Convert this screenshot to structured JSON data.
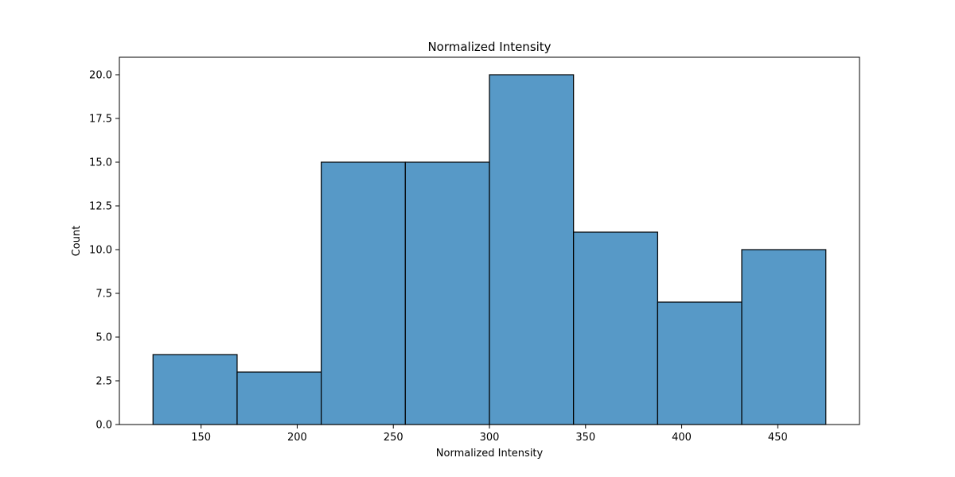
{
  "chart_data": {
    "type": "bar",
    "title": "Normalized Intensity",
    "xlabel": "Normalized Intensity",
    "ylabel": "Count",
    "xlim": [
      107.5,
      492.5
    ],
    "ylim": [
      0,
      21
    ],
    "grid": false,
    "bins": [
      {
        "left": 125.0,
        "right": 168.75,
        "count": 4
      },
      {
        "left": 168.75,
        "right": 212.5,
        "count": 3
      },
      {
        "left": 212.5,
        "right": 256.25,
        "count": 15
      },
      {
        "left": 256.25,
        "right": 300.0,
        "count": 15
      },
      {
        "left": 300.0,
        "right": 343.75,
        "count": 20
      },
      {
        "left": 343.75,
        "right": 387.5,
        "count": 11
      },
      {
        "left": 387.5,
        "right": 431.25,
        "count": 7
      },
      {
        "left": 431.25,
        "right": 475.0,
        "count": 10
      }
    ],
    "x_ticks": [
      {
        "value": 150,
        "label": "150"
      },
      {
        "value": 200,
        "label": "200"
      },
      {
        "value": 250,
        "label": "250"
      },
      {
        "value": 300,
        "label": "300"
      },
      {
        "value": 350,
        "label": "350"
      },
      {
        "value": 400,
        "label": "400"
      },
      {
        "value": 450,
        "label": "450"
      }
    ],
    "y_ticks": [
      {
        "value": 0,
        "label": "0.0"
      },
      {
        "value": 2.5,
        "label": "2.5"
      },
      {
        "value": 5,
        "label": "5.0"
      },
      {
        "value": 7.5,
        "label": "7.5"
      },
      {
        "value": 10,
        "label": "10.0"
      },
      {
        "value": 12.5,
        "label": "12.5"
      },
      {
        "value": 15,
        "label": "15.0"
      },
      {
        "value": 17.5,
        "label": "17.5"
      },
      {
        "value": 20,
        "label": "20.0"
      }
    ],
    "colors": {
      "bar_fill": "#5799c7",
      "bar_edge": "#000000",
      "axis": "#000000",
      "background": "#ffffff"
    }
  }
}
